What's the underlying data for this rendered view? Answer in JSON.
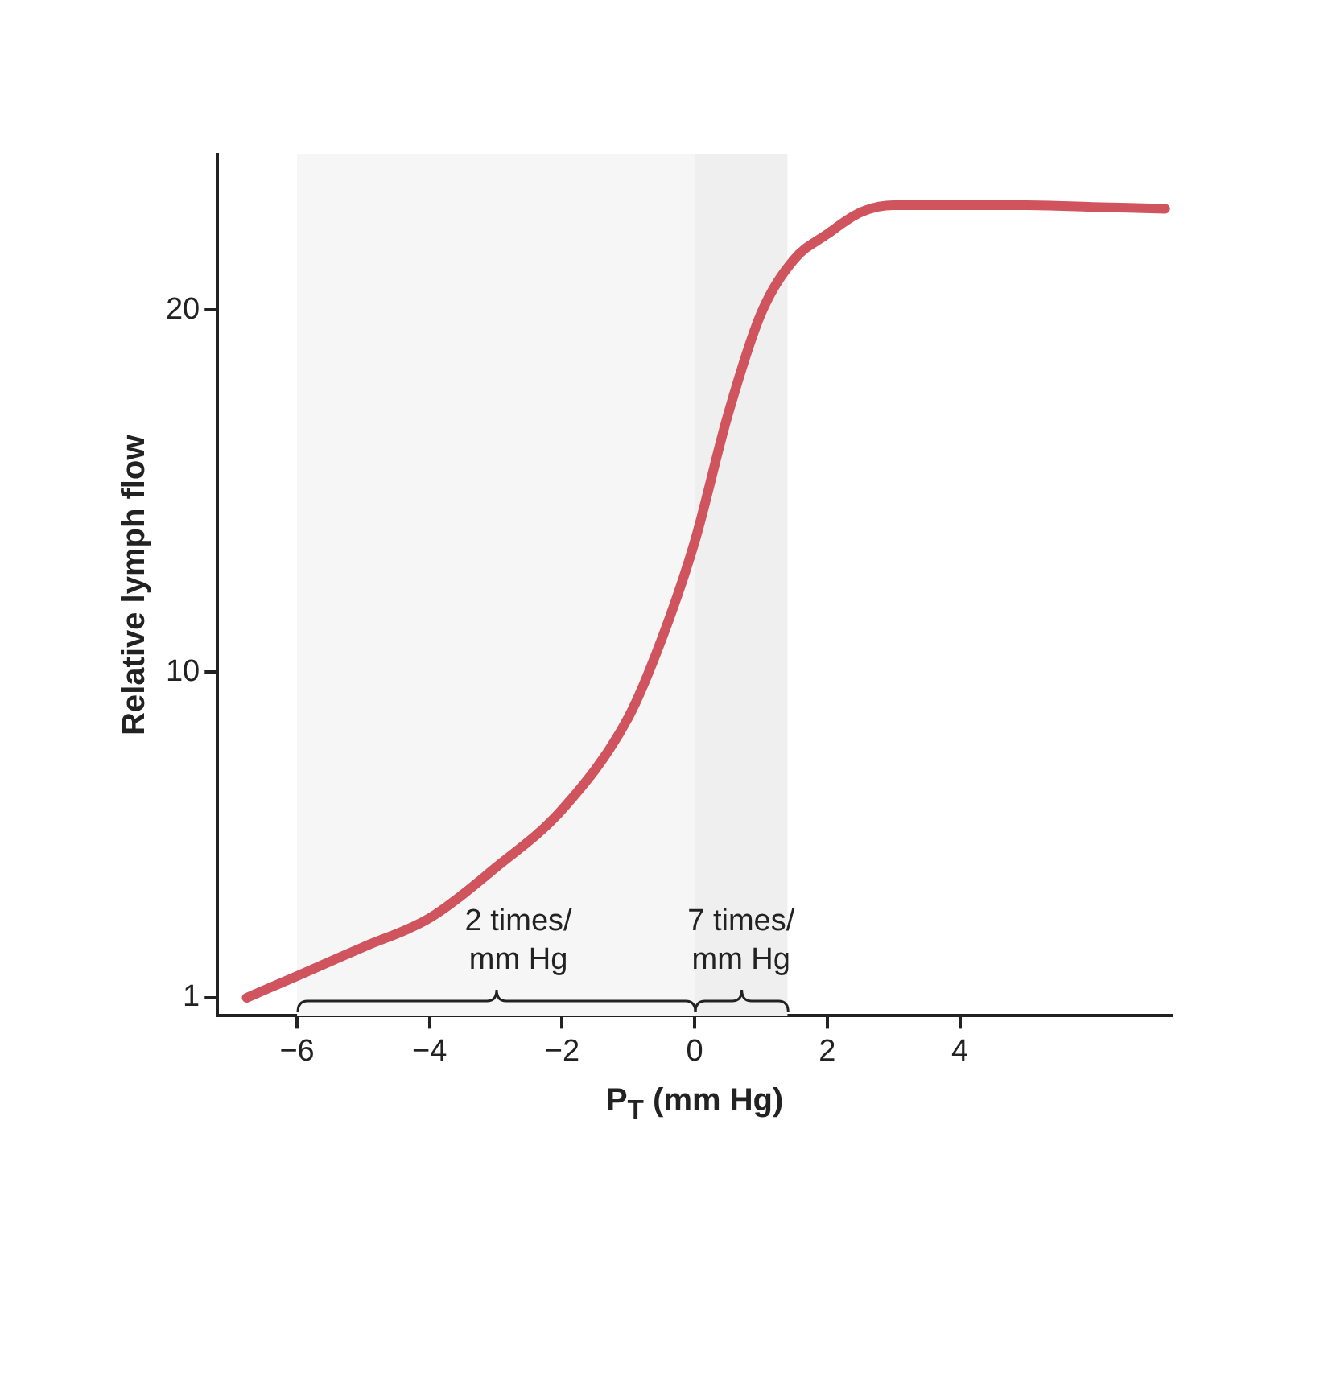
{
  "chart_data": {
    "type": "line",
    "ylabel": "Relative lymph flow",
    "xlabel": "P$_{T}$ (mm Hg)",
    "x": [
      -6.76,
      -6,
      -5,
      -4,
      -3,
      -2,
      -1,
      -0.5,
      0,
      0.5,
      1,
      1.5,
      2,
      2.5,
      3,
      4,
      5,
      6,
      7.1
    ],
    "series": [
      {
        "color": "#d0545e",
        "values": [
          1.0,
          1.6,
          2.4,
          3.2,
          4.6,
          6.2,
          8.75,
          10.9,
          13.6,
          17.1,
          19.9,
          21.4,
          22.1,
          22.7,
          22.9,
          22.9,
          22.9,
          22.85,
          22.8
        ]
      }
    ],
    "xlim": [
      -7.2,
      7.2
    ],
    "ylim": [
      0.5,
      24.3
    ],
    "xticks": [
      {
        "value": -6,
        "label": "−6"
      },
      {
        "value": -4,
        "label": "−4"
      },
      {
        "value": -2,
        "label": "−2"
      },
      0,
      2,
      4
    ],
    "yticks": [
      1,
      10,
      20
    ],
    "grid": false,
    "legend": false,
    "marker": "none",
    "line_style": "solid",
    "bands": [
      {
        "axis": "x",
        "from": -6,
        "to": 0,
        "label": "2 times/\nmm Hg",
        "color": "#f6f6f6"
      },
      {
        "axis": "x",
        "from": 0,
        "to": 1.4,
        "label": "7 times/\nmm Hg",
        "color": "#efefef"
      }
    ]
  }
}
